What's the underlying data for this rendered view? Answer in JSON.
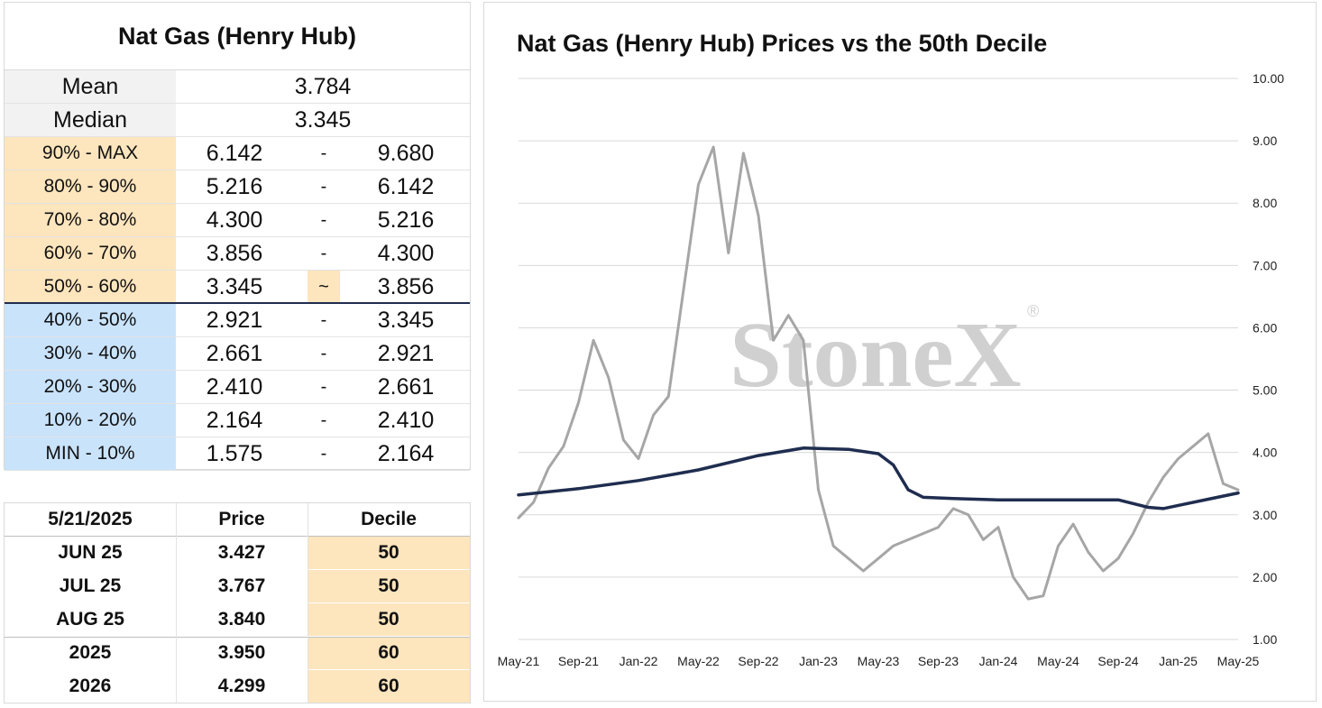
{
  "left_table": {
    "title": "Nat Gas (Henry Hub)",
    "mean_label": "Mean",
    "mean_value": "3.784",
    "median_label": "Median",
    "median_value": "3.345",
    "deciles": [
      {
        "label": "90% - MAX",
        "low": "6.142",
        "sep": "-",
        "high": "9.680"
      },
      {
        "label": "80% - 90%",
        "low": "5.216",
        "sep": "-",
        "high": "6.142"
      },
      {
        "label": "70% - 80%",
        "low": "4.300",
        "sep": "-",
        "high": "5.216"
      },
      {
        "label": "60% - 70%",
        "low": "3.856",
        "sep": "-",
        "high": "4.300"
      },
      {
        "label": "50% - 60%",
        "low": "3.345",
        "sep": "~",
        "high": "3.856"
      },
      {
        "label": "40% - 50%",
        "low": "2.921",
        "sep": "-",
        "high": "3.345"
      },
      {
        "label": "30% - 40%",
        "low": "2.661",
        "sep": "-",
        "high": "2.921"
      },
      {
        "label": "20% - 30%",
        "low": "2.410",
        "sep": "-",
        "high": "2.661"
      },
      {
        "label": "10% - 20%",
        "low": "2.164",
        "sep": "-",
        "high": "2.410"
      },
      {
        "label": "MIN - 10%",
        "low": "1.575",
        "sep": "-",
        "high": "2.164"
      }
    ],
    "colors": {
      "upper": "#fde5bd",
      "lower": "#c9e3fb",
      "divider": "#1f2d4f"
    }
  },
  "price_table": {
    "headers": [
      "5/21/2025",
      "Price",
      "Decile"
    ],
    "rows": [
      {
        "contract": "JUN 25",
        "price": "3.427",
        "decile": "50"
      },
      {
        "contract": "JUL 25",
        "price": "3.767",
        "decile": "50"
      },
      {
        "contract": "AUG 25",
        "price": "3.840",
        "decile": "50"
      },
      {
        "contract": "2025",
        "price": "3.950",
        "decile": "60"
      },
      {
        "contract": "2026",
        "price": "4.299",
        "decile": "60"
      }
    ]
  },
  "chart_data": {
    "type": "line",
    "title": "Nat Gas (Henry Hub) Prices vs the 50th Decile",
    "watermark": "StoneX",
    "watermark_mark": "®",
    "x_tick_labels": [
      "May-21",
      "Sep-21",
      "Jan-22",
      "May-22",
      "Sep-22",
      "Jan-23",
      "May-23",
      "Sep-23",
      "Jan-24",
      "May-24",
      "Sep-24",
      "Jan-25",
      "May-25"
    ],
    "y_tick_labels": [
      "1.00",
      "2.00",
      "3.00",
      "4.00",
      "5.00",
      "6.00",
      "7.00",
      "8.00",
      "9.00",
      "10.00"
    ],
    "ylim": [
      1,
      10
    ],
    "xlim": [
      "2021-05",
      "2025-05"
    ],
    "y_axis_position": "right",
    "grid": "horizontal",
    "series": [
      {
        "color": "#a6a6a6",
        "x": [
          "2021-05",
          "2021-06",
          "2021-07",
          "2021-08",
          "2021-09",
          "2021-10",
          "2021-11",
          "2021-12",
          "2022-01",
          "2022-02",
          "2022-03",
          "2022-04",
          "2022-05",
          "2022-06",
          "2022-07",
          "2022-08",
          "2022-09",
          "2022-10",
          "2022-11",
          "2022-12",
          "2023-01",
          "2023-02",
          "2023-03",
          "2023-04",
          "2023-05",
          "2023-06",
          "2023-07",
          "2023-08",
          "2023-09",
          "2023-10",
          "2023-11",
          "2023-12",
          "2024-01",
          "2024-02",
          "2024-03",
          "2024-04",
          "2024-05",
          "2024-06",
          "2024-07",
          "2024-08",
          "2024-09",
          "2024-10",
          "2024-11",
          "2024-12",
          "2025-01",
          "2025-02",
          "2025-03",
          "2025-04",
          "2025-05"
        ],
        "values": [
          2.95,
          3.2,
          3.75,
          4.1,
          4.8,
          5.8,
          5.2,
          4.2,
          3.9,
          4.6,
          4.9,
          6.6,
          8.3,
          8.9,
          7.2,
          8.8,
          7.8,
          5.8,
          6.2,
          5.8,
          3.4,
          2.5,
          2.3,
          2.1,
          2.3,
          2.5,
          2.6,
          2.7,
          2.8,
          3.1,
          3.0,
          2.6,
          2.8,
          2.0,
          1.65,
          1.7,
          2.5,
          2.85,
          2.4,
          2.1,
          2.3,
          2.7,
          3.2,
          3.6,
          3.9,
          4.1,
          4.3,
          3.5,
          3.4
        ]
      },
      {
        "color": "#1f2d4f",
        "x": [
          "2021-05",
          "2021-09",
          "2022-01",
          "2022-05",
          "2022-09",
          "2022-12",
          "2023-03",
          "2023-05",
          "2023-06",
          "2023-07",
          "2023-08",
          "2023-10",
          "2024-01",
          "2024-05",
          "2024-09",
          "2024-11",
          "2024-12",
          "2025-01",
          "2025-03",
          "2025-05"
        ],
        "values": [
          3.32,
          3.42,
          3.55,
          3.72,
          3.95,
          4.07,
          4.05,
          3.98,
          3.8,
          3.4,
          3.28,
          3.26,
          3.24,
          3.24,
          3.24,
          3.12,
          3.1,
          3.15,
          3.25,
          3.35
        ]
      }
    ]
  }
}
